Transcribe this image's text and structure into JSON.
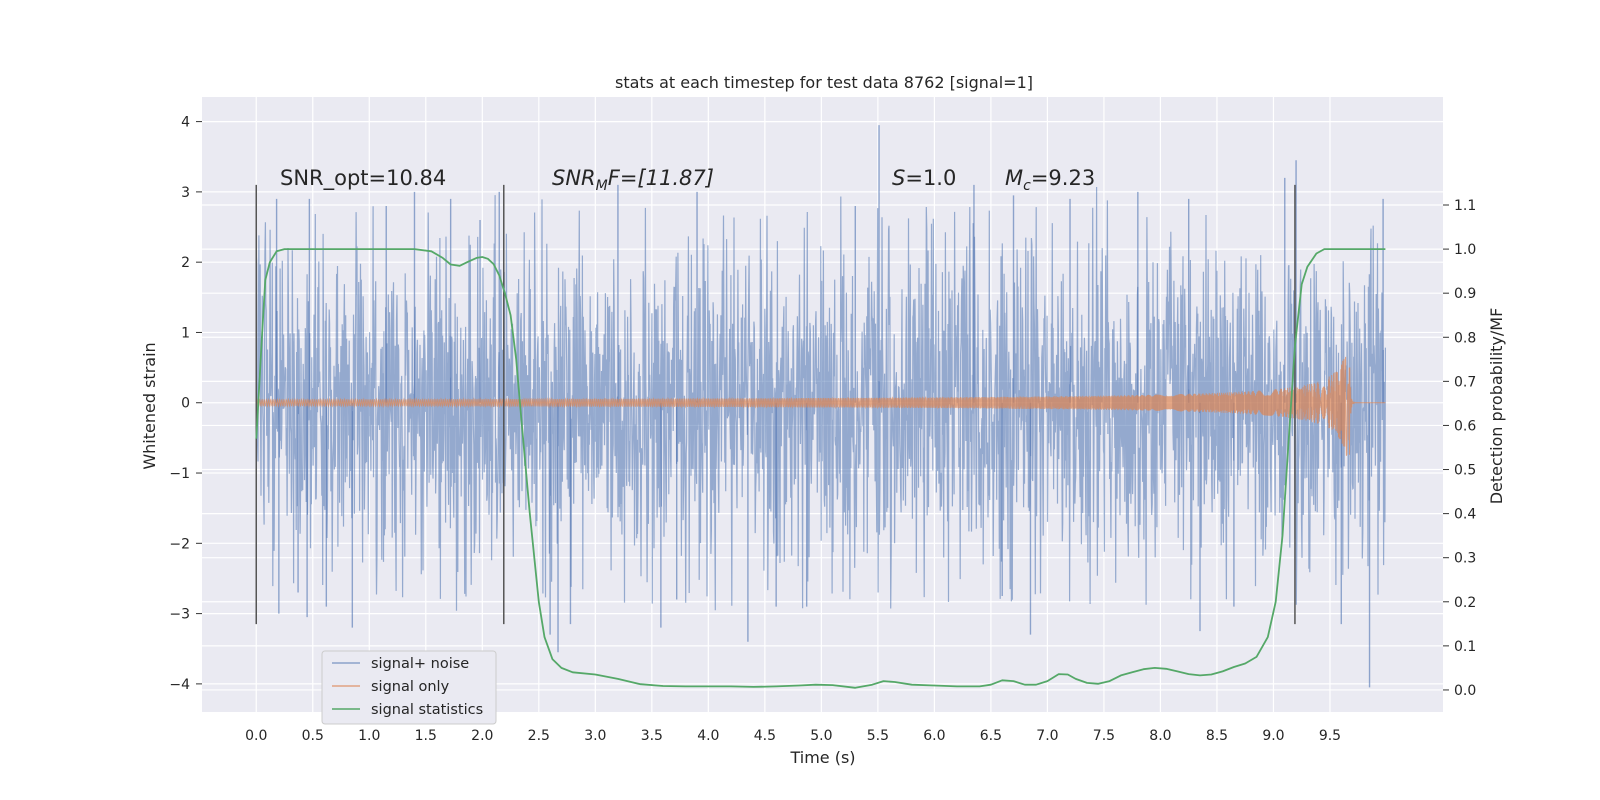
{
  "chart_data": {
    "type": "line",
    "title": "stats at each timestep for test data 8762 [signal=1]",
    "xlabel": "Time (s)",
    "ylabel": "Whitened strain",
    "y2label": "Detection probability/MF",
    "xlim": [
      -0.48,
      10.5
    ],
    "ylim": [
      -4.4,
      4.35
    ],
    "y2lim": [
      -0.05,
      1.345
    ],
    "x_ticks": [
      "0.0",
      "0.5",
      "1.0",
      "1.5",
      "2.0",
      "2.5",
      "3.0",
      "3.5",
      "4.0",
      "4.5",
      "5.0",
      "5.5",
      "6.0",
      "6.5",
      "7.0",
      "7.5",
      "8.0",
      "8.5",
      "9.0",
      "9.5"
    ],
    "y_ticks": [
      "4",
      "3",
      "2",
      "1",
      "0",
      "−1",
      "−2",
      "−3",
      "−4"
    ],
    "y2_ticks": [
      "1.1",
      "1.0",
      "0.9",
      "0.8",
      "0.7",
      "0.6",
      "0.5",
      "0.4",
      "0.3",
      "0.2",
      "0.1",
      "0.0"
    ],
    "grid": true,
    "legend_position": "lower-left",
    "colors": {
      "background": "#eaeaf2",
      "grid": "#ffffff",
      "noise": "#4c72b0",
      "signal": "#dd8452",
      "stats": "#55a868",
      "vline": "#555555"
    },
    "annotations": {
      "snr_opt": "SNR_opt=10.84",
      "snr_mf_base": "SNR",
      "snr_mf_sub": "M",
      "snr_mf_rest": "F=[11.87]",
      "s_base": "S",
      "s_rest": "=1.0",
      "mc_base": "M",
      "mc_sub": "c",
      "mc_rest": "=9.23"
    },
    "vertical_lines_x": [
      0.0,
      2.19,
      9.19
    ],
    "vertical_lines_yrange": [
      -3.15,
      3.1
    ],
    "series": [
      {
        "name": "signal+ noise",
        "style": "dense noise band",
        "x_range": [
          0.0,
          9.99
        ],
        "typical_amplitude": 1.3,
        "peaks": [
          {
            "x": 0.2,
            "y": -3.0
          },
          {
            "x": 0.18,
            "y": 2.9
          },
          {
            "x": 0.37,
            "y": -2.7
          },
          {
            "x": 0.45,
            "y": -3.05
          },
          {
            "x": 0.47,
            "y": 2.9
          },
          {
            "x": 0.62,
            "y": -2.9
          },
          {
            "x": 0.85,
            "y": -3.2
          },
          {
            "x": 1.15,
            "y": 2.8
          },
          {
            "x": 1.4,
            "y": 3.0
          },
          {
            "x": 1.72,
            "y": 2.9
          },
          {
            "x": 1.98,
            "y": 2.6
          },
          {
            "x": 2.15,
            "y": 3.0
          },
          {
            "x": 2.6,
            "y": -3.3
          },
          {
            "x": 2.67,
            "y": -3.55
          },
          {
            "x": 2.78,
            "y": -3.15
          },
          {
            "x": 3.2,
            "y": 3.1
          },
          {
            "x": 3.58,
            "y": -3.2
          },
          {
            "x": 3.72,
            "y": -2.8
          },
          {
            "x": 3.9,
            "y": 3.0
          },
          {
            "x": 4.35,
            "y": -3.4
          },
          {
            "x": 4.6,
            "y": -2.9
          },
          {
            "x": 4.87,
            "y": -2.9
          },
          {
            "x": 5.3,
            "y": 2.8
          },
          {
            "x": 5.51,
            "y": 3.95
          },
          {
            "x": 6.35,
            "y": 3.1
          },
          {
            "x": 6.6,
            "y": -2.75
          },
          {
            "x": 6.7,
            "y": 2.95
          },
          {
            "x": 6.85,
            "y": -3.3
          },
          {
            "x": 7.2,
            "y": 2.9
          },
          {
            "x": 7.8,
            "y": 3.0
          },
          {
            "x": 8.25,
            "y": 2.9
          },
          {
            "x": 8.35,
            "y": -3.25
          },
          {
            "x": 8.65,
            "y": -2.9
          },
          {
            "x": 9.1,
            "y": 3.2
          },
          {
            "x": 9.2,
            "y": 3.45
          },
          {
            "x": 9.6,
            "y": -3.15
          },
          {
            "x": 9.85,
            "y": -4.05
          },
          {
            "x": 9.97,
            "y": 2.9
          }
        ]
      },
      {
        "name": "signal only",
        "style": "chirp",
        "t_start": 0.0,
        "t_merger": 9.67,
        "t_end": 9.99,
        "max_amplitude": 1.08
      },
      {
        "name": "signal statistics",
        "axis": "right",
        "x": [
          0.0,
          0.05,
          0.08,
          0.12,
          0.18,
          0.25,
          0.4,
          0.6,
          0.8,
          1.0,
          1.2,
          1.4,
          1.55,
          1.65,
          1.72,
          1.8,
          1.88,
          1.95,
          2.0,
          2.05,
          2.1,
          2.15,
          2.2,
          2.25,
          2.3,
          2.35,
          2.42,
          2.5,
          2.55,
          2.62,
          2.7,
          2.8,
          3.0,
          3.2,
          3.4,
          3.6,
          3.8,
          4.0,
          4.2,
          4.4,
          4.6,
          4.8,
          4.95,
          5.1,
          5.3,
          5.45,
          5.55,
          5.65,
          5.8,
          6.0,
          6.2,
          6.4,
          6.5,
          6.6,
          6.7,
          6.8,
          6.9,
          7.0,
          7.1,
          7.18,
          7.25,
          7.35,
          7.45,
          7.55,
          7.65,
          7.75,
          7.85,
          7.95,
          8.05,
          8.15,
          8.25,
          8.35,
          8.45,
          8.55,
          8.65,
          8.75,
          8.85,
          8.95,
          9.02,
          9.08,
          9.13,
          9.19,
          9.25,
          9.3,
          9.38,
          9.45,
          9.55,
          9.7,
          9.85,
          9.99
        ],
        "y": [
          0.57,
          0.8,
          0.93,
          0.97,
          0.995,
          1.0,
          1.0,
          1.0,
          1.0,
          1.0,
          1.0,
          1.0,
          0.995,
          0.98,
          0.965,
          0.962,
          0.972,
          0.98,
          0.982,
          0.978,
          0.966,
          0.94,
          0.9,
          0.85,
          0.75,
          0.6,
          0.4,
          0.2,
          0.12,
          0.07,
          0.05,
          0.04,
          0.035,
          0.025,
          0.013,
          0.009,
          0.008,
          0.008,
          0.008,
          0.007,
          0.008,
          0.01,
          0.012,
          0.011,
          0.005,
          0.012,
          0.02,
          0.018,
          0.012,
          0.01,
          0.008,
          0.008,
          0.012,
          0.022,
          0.02,
          0.012,
          0.012,
          0.02,
          0.036,
          0.035,
          0.025,
          0.016,
          0.014,
          0.02,
          0.033,
          0.04,
          0.047,
          0.05,
          0.048,
          0.042,
          0.036,
          0.033,
          0.035,
          0.042,
          0.052,
          0.06,
          0.075,
          0.12,
          0.2,
          0.35,
          0.55,
          0.78,
          0.92,
          0.96,
          0.99,
          1.0,
          1.0,
          1.0,
          1.0,
          1.0
        ]
      }
    ]
  }
}
